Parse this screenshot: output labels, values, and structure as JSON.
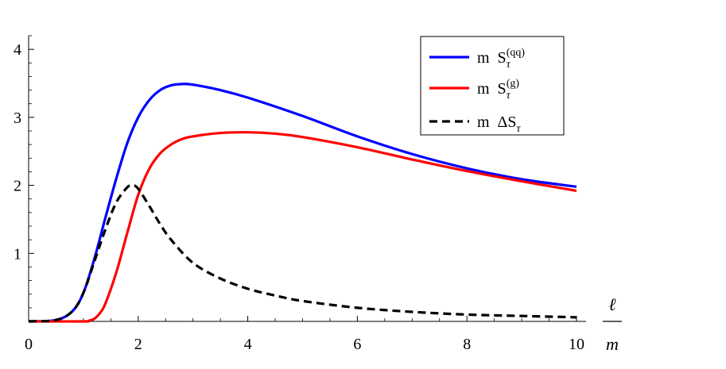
{
  "chart_data": {
    "type": "line",
    "title": "",
    "xlabel": {
      "numerator": "ℓ",
      "denominator": "m"
    },
    "ylabel": "",
    "xlim": [
      0,
      10
    ],
    "ylim": [
      0,
      4.2
    ],
    "x_ticks": [
      "0",
      "2",
      "4",
      "6",
      "8",
      "10"
    ],
    "y_ticks": [
      "1",
      "2",
      "3",
      "4"
    ],
    "grid": false,
    "legend_position": "top-right",
    "series": [
      {
        "name": {
          "prefix": "m  S",
          "sub": "τ",
          "sup": "(qq)"
        },
        "color": "#0000ff",
        "style": "solid",
        "x": [
          0,
          0.5,
          0.8,
          1.0,
          1.2,
          1.4,
          1.6,
          1.8,
          2.0,
          2.2,
          2.4,
          2.6,
          2.8,
          3.0,
          3.5,
          4.0,
          5.0,
          6.0,
          7.0,
          8.0,
          9.0,
          10.0
        ],
        "y": [
          0.0,
          0.02,
          0.15,
          0.42,
          0.92,
          1.52,
          2.1,
          2.62,
          3.0,
          3.25,
          3.4,
          3.47,
          3.49,
          3.48,
          3.4,
          3.29,
          3.02,
          2.72,
          2.46,
          2.25,
          2.09,
          1.98
        ]
      },
      {
        "name": {
          "prefix": "m  S",
          "sub": "τ",
          "sup": "(g)"
        },
        "color": "#ff0000",
        "style": "solid",
        "x": [
          0,
          1.0,
          1.1,
          1.2,
          1.3,
          1.4,
          1.6,
          1.8,
          2.0,
          2.2,
          2.4,
          2.6,
          2.8,
          3.0,
          3.5,
          4.0,
          4.5,
          5.0,
          6.0,
          7.0,
          8.0,
          9.0,
          10.0
        ],
        "y": [
          0.0,
          0.0,
          0.01,
          0.04,
          0.12,
          0.26,
          0.72,
          1.3,
          1.86,
          2.24,
          2.47,
          2.6,
          2.68,
          2.72,
          2.77,
          2.78,
          2.76,
          2.71,
          2.56,
          2.38,
          2.21,
          2.06,
          1.92
        ]
      },
      {
        "name": {
          "prefix": "m  ΔS",
          "sub": "τ",
          "sup": ""
        },
        "color": "#000000",
        "style": "dashed",
        "x": [
          0,
          0.5,
          0.8,
          1.0,
          1.2,
          1.4,
          1.6,
          1.8,
          1.9,
          2.0,
          2.2,
          2.4,
          2.6,
          3.0,
          3.5,
          4.0,
          4.5,
          5.0,
          6.0,
          7.0,
          8.0,
          9.0,
          10.0
        ],
        "y": [
          0.0,
          0.02,
          0.15,
          0.42,
          0.88,
          1.35,
          1.75,
          1.97,
          2.0,
          1.95,
          1.7,
          1.43,
          1.2,
          0.86,
          0.63,
          0.48,
          0.38,
          0.3,
          0.2,
          0.14,
          0.1,
          0.08,
          0.06
        ]
      }
    ]
  }
}
